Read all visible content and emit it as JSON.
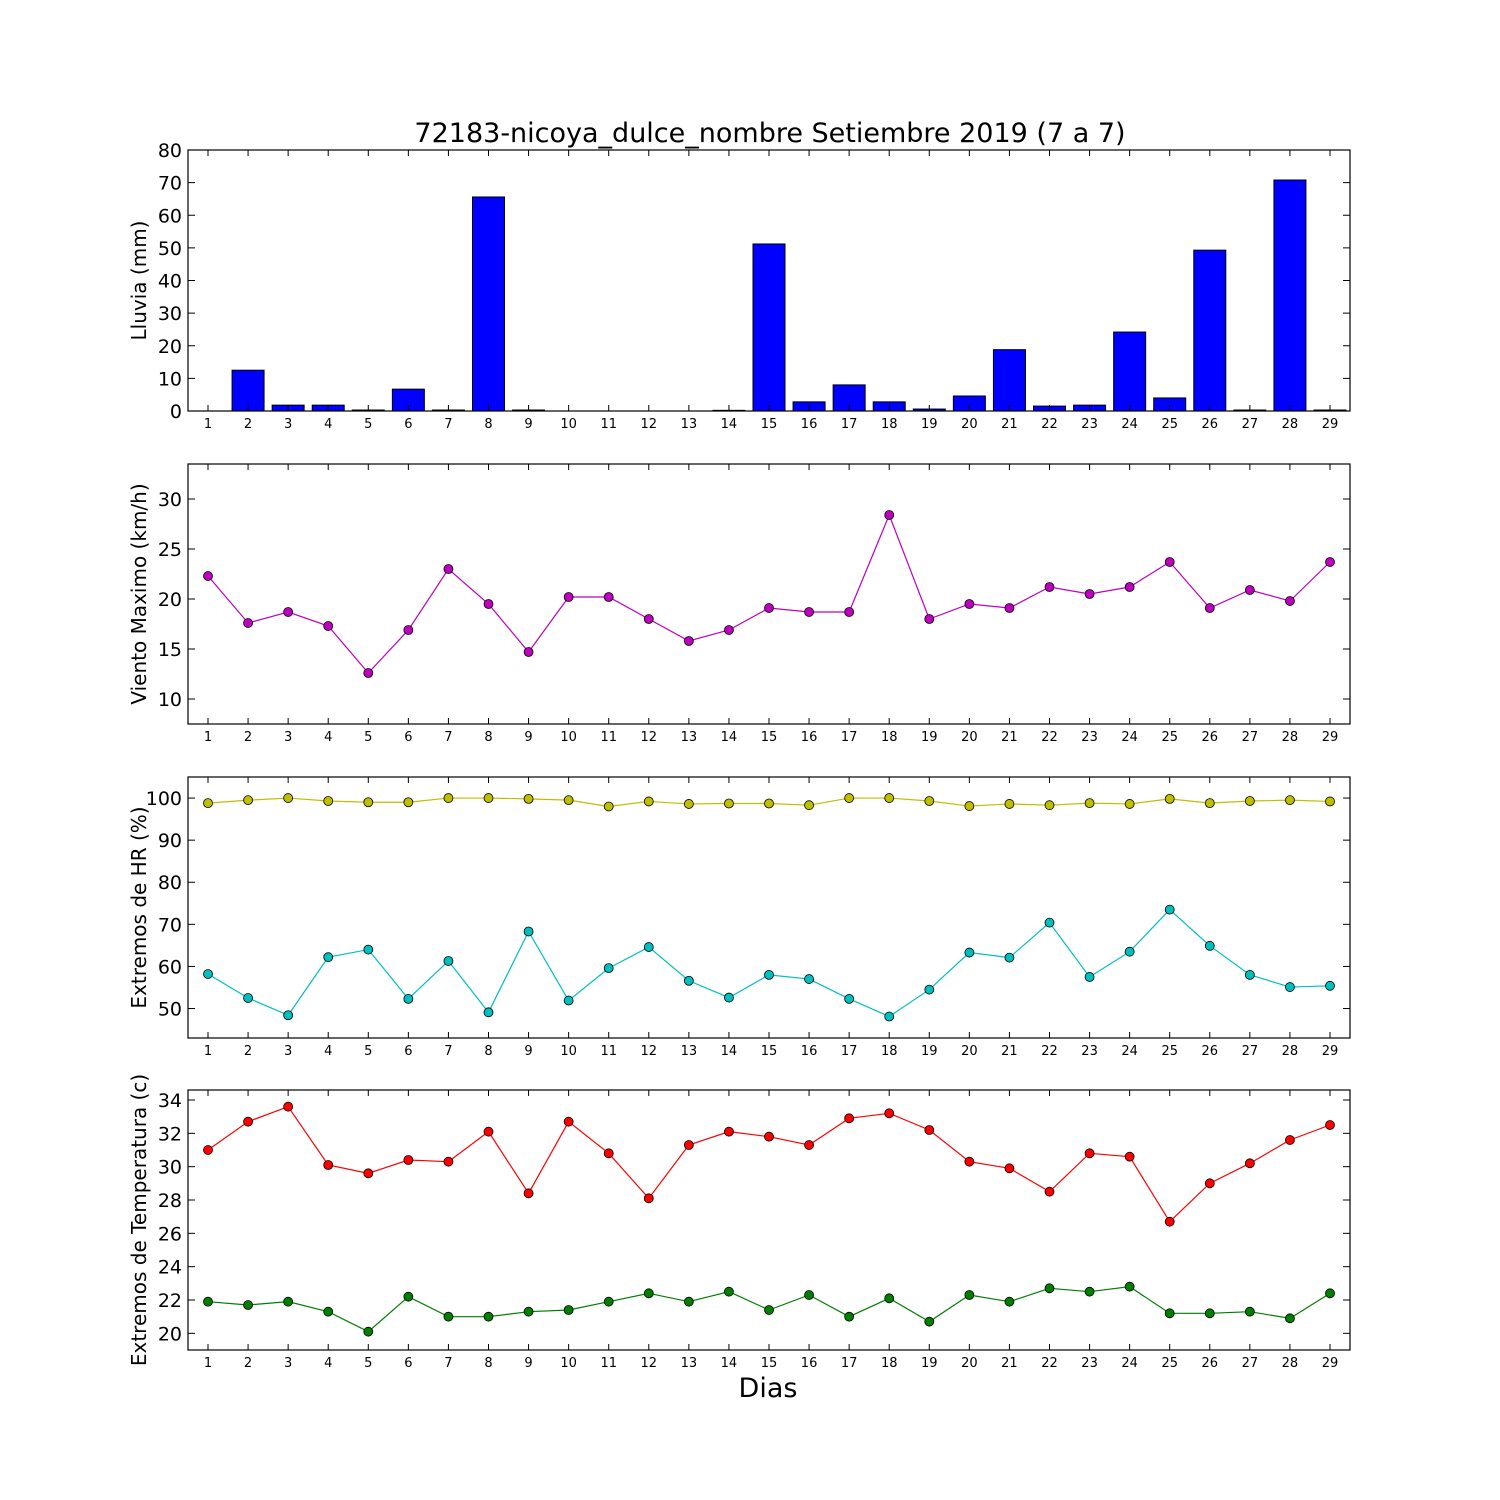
{
  "chart_data": {
    "title": "72183-nicoya_dulce_nombre Setiembre 2019  (7 a 7)",
    "xlabel": "Dias",
    "x": [
      1,
      2,
      3,
      4,
      5,
      6,
      7,
      8,
      9,
      10,
      11,
      12,
      13,
      14,
      15,
      16,
      17,
      18,
      19,
      20,
      21,
      22,
      23,
      24,
      25,
      26,
      27,
      28,
      29
    ],
    "panels": [
      {
        "id": "lluvia",
        "type": "bar",
        "ylabel": "Lluvia (mm)",
        "ylim": [
          0,
          80
        ],
        "yticks": [
          0,
          10,
          20,
          30,
          40,
          50,
          60,
          70,
          80
        ],
        "series": [
          {
            "color": "#0000ff",
            "values": [
              0,
              12.5,
              1.8,
              1.8,
              0.3,
              6.7,
              0.3,
              65.6,
              0.3,
              0,
              0,
              0,
              0,
              0.2,
              51.2,
              2.8,
              8.0,
              2.8,
              0.6,
              4.6,
              18.8,
              1.5,
              1.8,
              24.2,
              4.0,
              49.3,
              0.3,
              70.8,
              0.3
            ]
          }
        ]
      },
      {
        "id": "viento",
        "type": "line",
        "ylabel": "Viento Maximo (km/h)",
        "ylim": [
          7.5,
          33.5
        ],
        "yticks": [
          10,
          15,
          20,
          25,
          30
        ],
        "series": [
          {
            "color": "#bf00bf",
            "values": [
              22.3,
              17.6,
              18.7,
              17.3,
              12.6,
              16.9,
              23.0,
              19.5,
              14.7,
              20.2,
              20.2,
              18.0,
              15.8,
              16.9,
              19.1,
              18.7,
              18.7,
              28.4,
              18.0,
              19.5,
              19.1,
              21.2,
              20.5,
              21.2,
              23.7,
              19.1,
              20.9,
              19.8,
              23.7
            ]
          }
        ]
      },
      {
        "id": "hr",
        "type": "line",
        "ylabel": "Extremos de HR (%)",
        "ylim": [
          43,
          105
        ],
        "yticks": [
          50,
          60,
          70,
          80,
          90,
          100
        ],
        "series": [
          {
            "color": "#bfbf00",
            "values": [
              98.8,
              99.5,
              100.0,
              99.3,
              99.0,
              99.0,
              100.0,
              100.0,
              99.8,
              99.5,
              98.0,
              99.2,
              98.6,
              98.7,
              98.7,
              98.3,
              100.0,
              100.0,
              99.3,
              98.1,
              98.6,
              98.3,
              98.8,
              98.6,
              99.8,
              98.8,
              99.3,
              99.5,
              99.2
            ]
          },
          {
            "color": "#00bfbf",
            "values": [
              58.2,
              52.5,
              48.4,
              62.2,
              64.0,
              52.3,
              61.3,
              49.1,
              68.3,
              51.9,
              59.6,
              64.6,
              56.6,
              52.6,
              58.0,
              57.0,
              52.3,
              48.1,
              54.5,
              63.3,
              62.1,
              70.4,
              57.5,
              63.5,
              73.5,
              64.9,
              58.0,
              55.1,
              55.4
            ]
          }
        ]
      },
      {
        "id": "temperatura",
        "type": "line",
        "ylabel": "Extremos de Temperatura (c)",
        "ylim": [
          19,
          34.6
        ],
        "yticks": [
          20,
          22,
          24,
          26,
          28,
          30,
          32,
          34
        ],
        "series": [
          {
            "color": "#ff0000",
            "values": [
              31.0,
              32.7,
              33.6,
              30.1,
              29.6,
              30.4,
              30.3,
              32.1,
              28.4,
              32.7,
              30.8,
              28.1,
              31.3,
              32.1,
              31.8,
              31.3,
              32.9,
              33.2,
              32.2,
              30.3,
              29.9,
              28.5,
              30.8,
              30.6,
              26.7,
              29.0,
              30.2,
              31.6,
              32.5
            ]
          },
          {
            "color": "#007f00",
            "values": [
              21.9,
              21.7,
              21.9,
              21.3,
              20.1,
              22.2,
              21.0,
              21.0,
              21.3,
              21.4,
              21.9,
              22.4,
              21.9,
              22.5,
              21.4,
              22.3,
              21.0,
              22.1,
              20.7,
              22.3,
              21.9,
              22.7,
              22.5,
              22.8,
              21.2,
              21.2,
              21.3,
              20.9,
              22.4
            ]
          }
        ]
      }
    ]
  }
}
